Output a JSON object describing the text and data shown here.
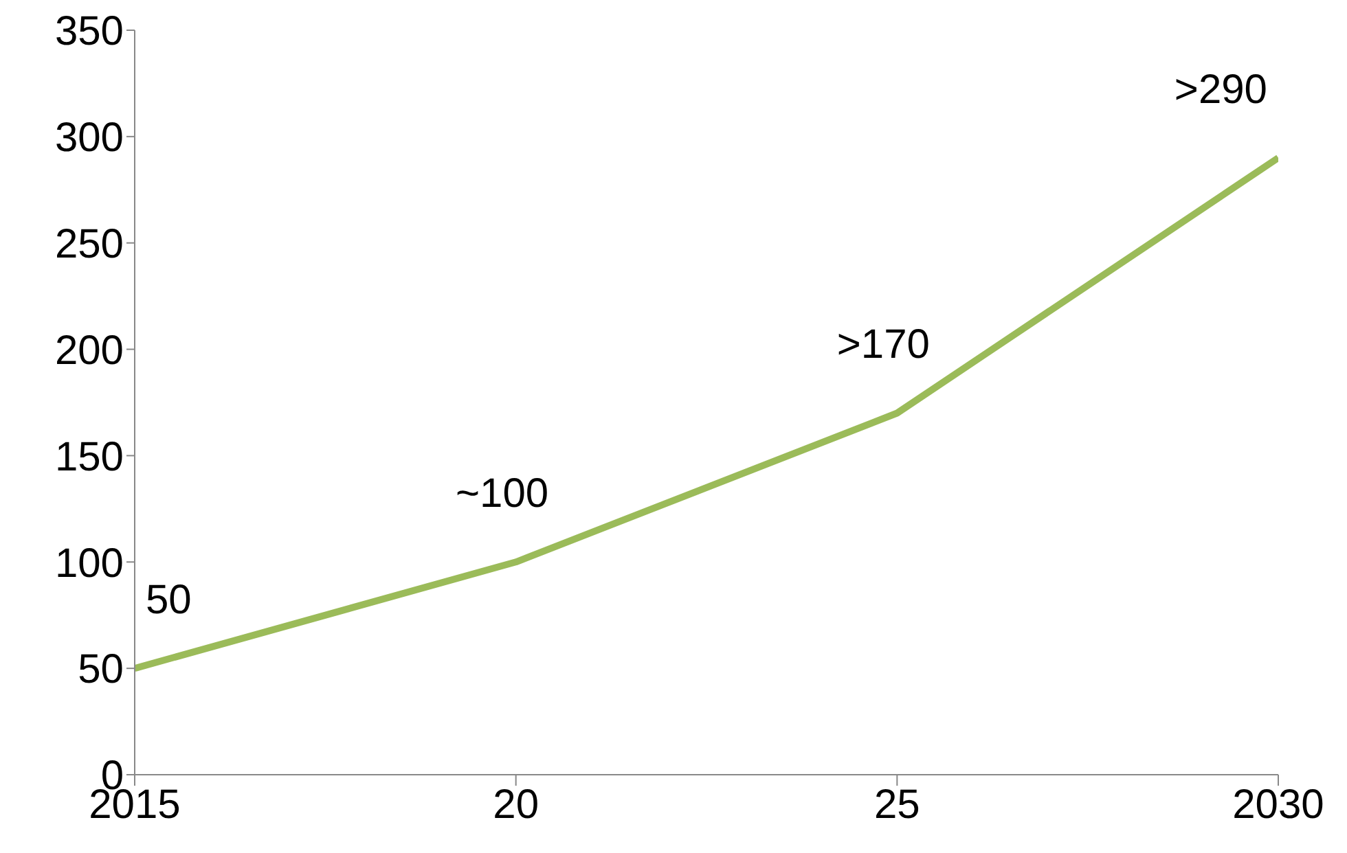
{
  "chart_data": {
    "type": "line",
    "x": [
      2015,
      2020,
      2025,
      2030
    ],
    "values": [
      50,
      100,
      170,
      290
    ],
    "color": "#9bbb59",
    "value_labels": [
      "50",
      "~100",
      ">170",
      ">290"
    ],
    "xlim": [
      2015,
      2030
    ],
    "xticks": [
      2015,
      {
        "value": 2020,
        "label": "20"
      },
      {
        "value": 2025,
        "label": "25"
      },
      2030
    ],
    "ylim": [
      0,
      350
    ],
    "yticks": [
      0,
      50,
      100,
      150,
      200,
      250,
      300,
      350
    ],
    "grid": false,
    "marker": "none",
    "line_style": "solid"
  }
}
